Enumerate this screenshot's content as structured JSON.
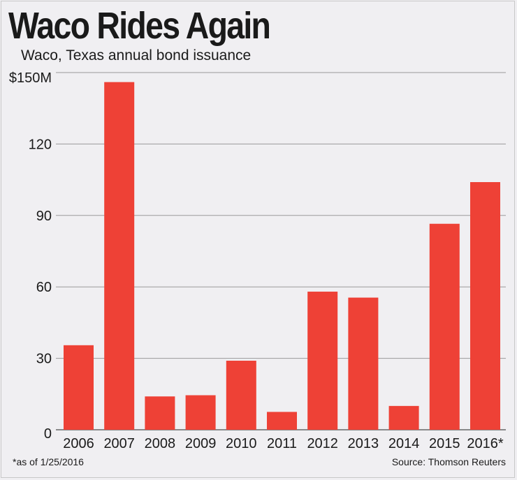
{
  "header": {
    "title": "Waco Rides Again",
    "subtitle": "Waco, Texas annual bond issuance"
  },
  "footer": {
    "footnote": "*as of 1/25/2016",
    "source": "Source: Thomson Reuters"
  },
  "colors": {
    "bar": "#ee4136",
    "grid": "#9a9a9a",
    "background": "#f0eff2"
  },
  "chart_data": {
    "type": "bar",
    "title": "Waco Rides Again",
    "subtitle": "Waco, Texas annual bond issuance",
    "xlabel": "",
    "ylabel": "",
    "categories": [
      "2006",
      "2007",
      "2008",
      "2009",
      "2010",
      "2011",
      "2012",
      "2013",
      "2014",
      "2015",
      "2016*"
    ],
    "values": [
      35.5,
      146,
      14,
      14.5,
      29,
      7.5,
      58,
      55.5,
      10,
      86.5,
      104
    ],
    "unit": "$M",
    "ylim": [
      0,
      150
    ],
    "yticks": [
      0,
      30,
      60,
      90,
      120,
      150
    ],
    "ytick_labels": [
      "0",
      "30",
      "60",
      "90",
      "120",
      "$150M"
    ],
    "grid": true,
    "legend": "none"
  }
}
